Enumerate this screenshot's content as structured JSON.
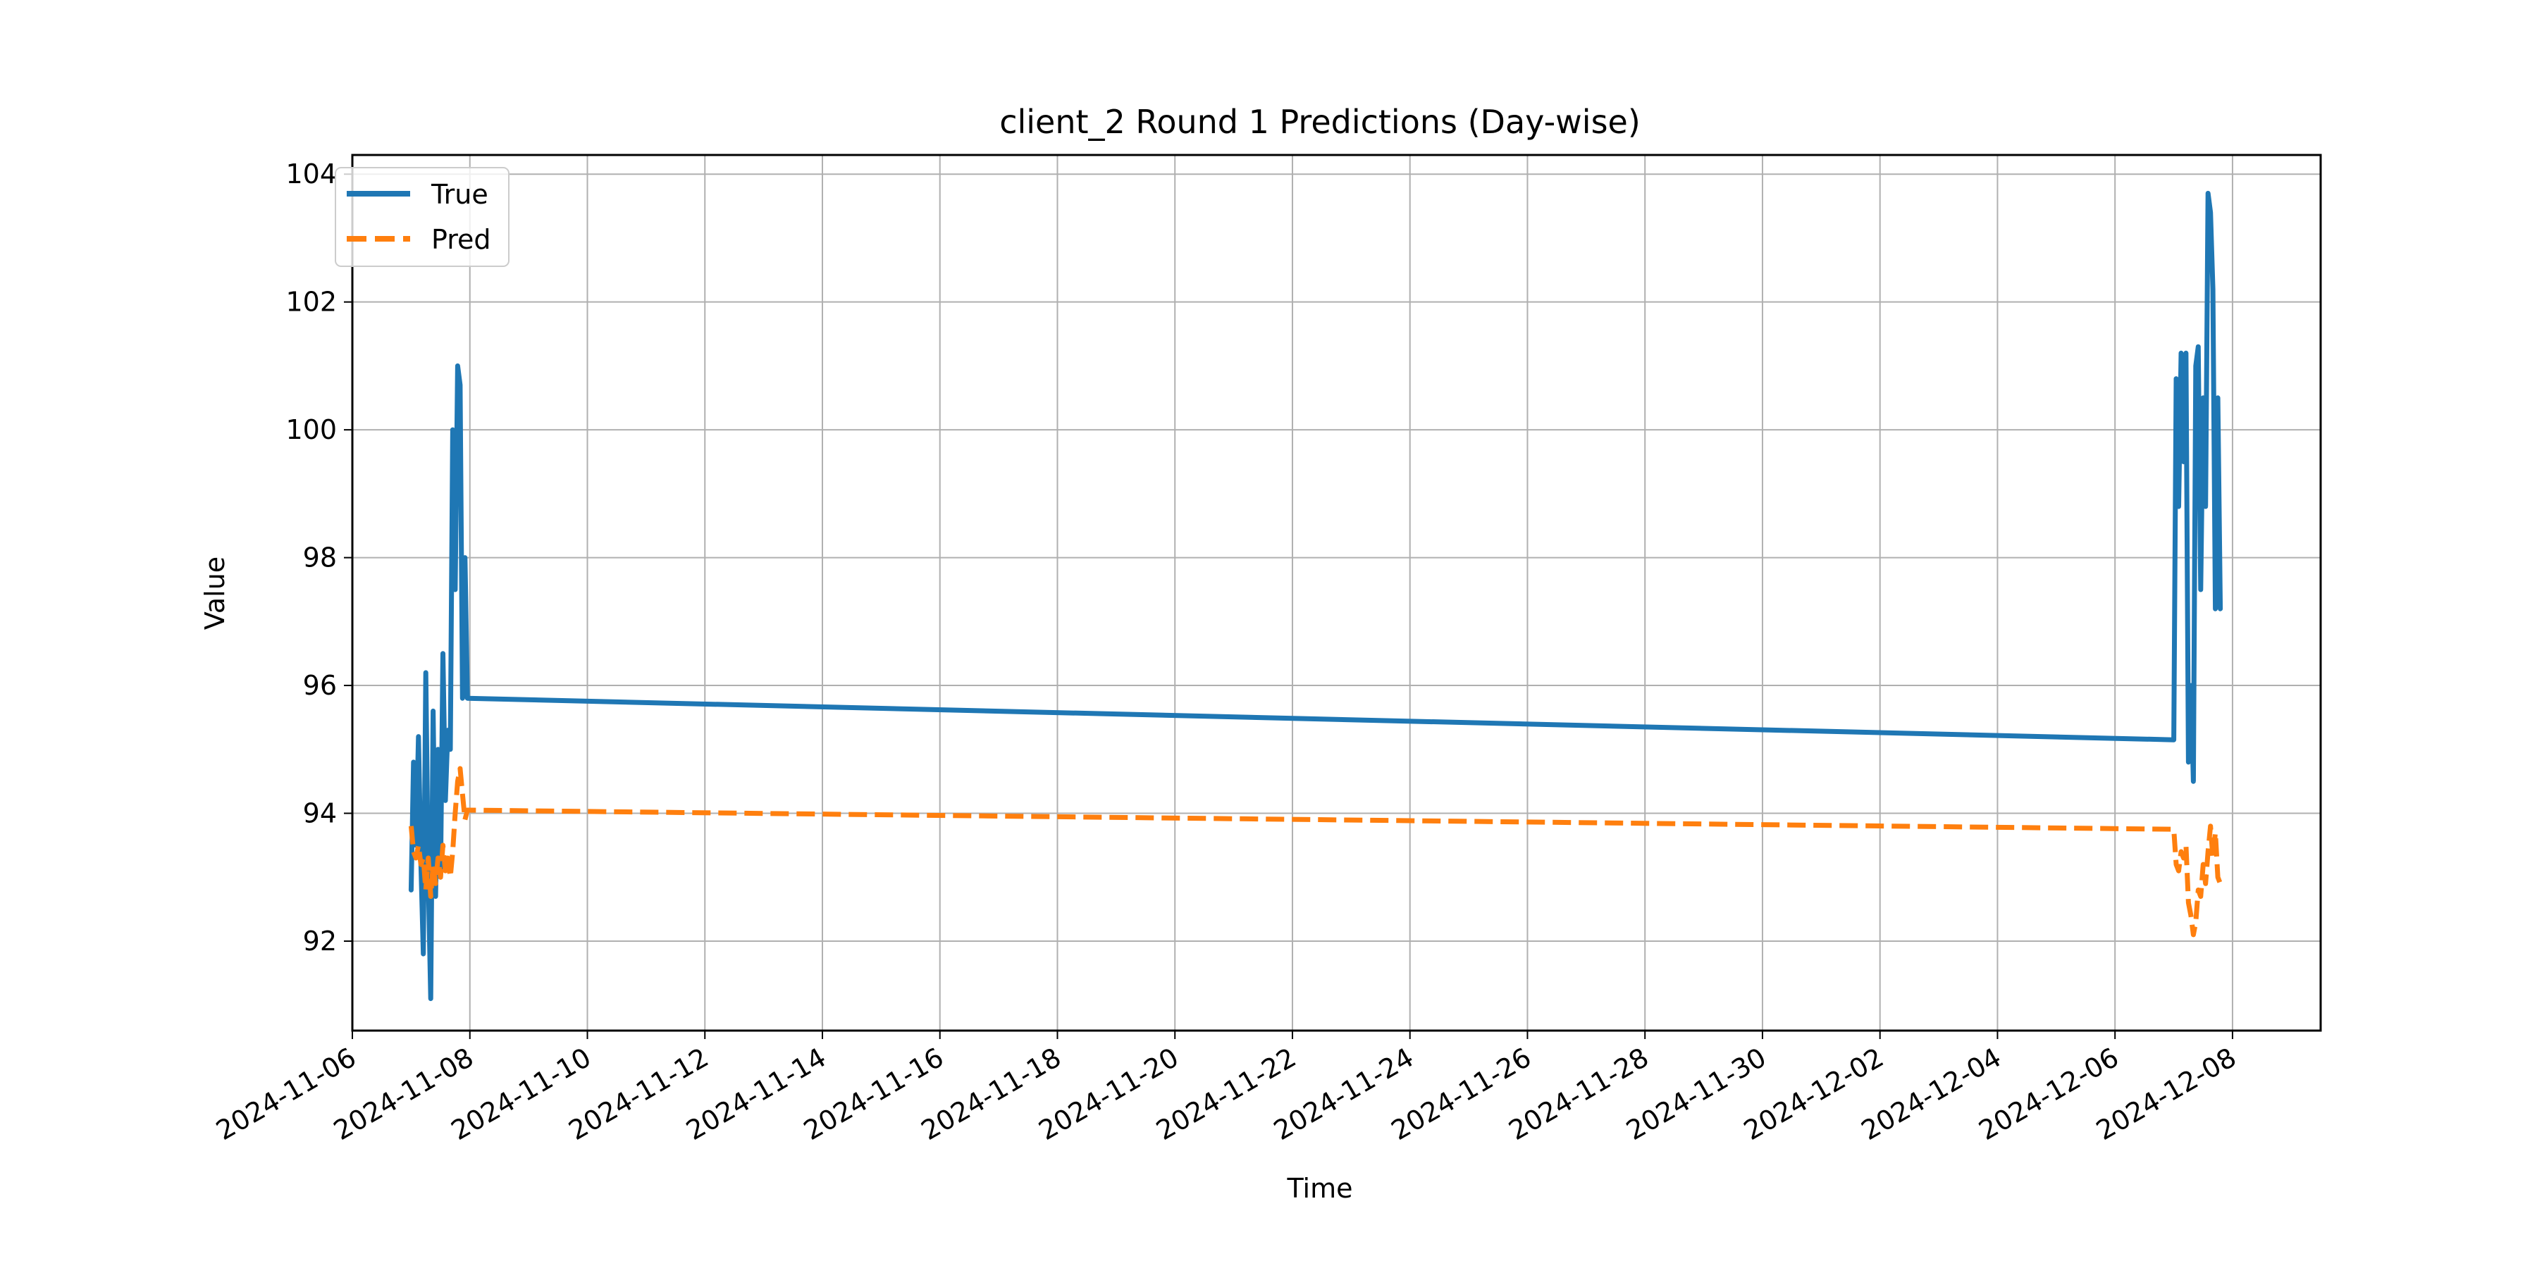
{
  "chart_data": {
    "type": "line",
    "title": "client_2 Round 1 Predictions (Day-wise)",
    "xlabel": "Time",
    "ylabel": "Value",
    "xlim": [
      "2024-11-06T00:00",
      "2024-12-09T12:00"
    ],
    "ylim": [
      90.6,
      104.3
    ],
    "x_ticks": [
      "2024-11-06",
      "2024-11-08",
      "2024-11-10",
      "2024-11-12",
      "2024-11-14",
      "2024-11-16",
      "2024-11-18",
      "2024-11-20",
      "2024-11-22",
      "2024-11-24",
      "2024-11-26",
      "2024-11-28",
      "2024-11-30",
      "2024-12-02",
      "2024-12-04",
      "2024-12-06",
      "2024-12-08"
    ],
    "y_ticks": [
      92,
      94,
      96,
      98,
      100,
      102,
      104
    ],
    "grid": true,
    "legend_position": "top-left",
    "series": [
      {
        "name": "True",
        "color": "#1f77b4",
        "style": "solid",
        "points": [
          [
            "2024-11-07T00:00",
            92.8
          ],
          [
            "2024-11-07T01:00",
            94.8
          ],
          [
            "2024-11-07T02:00",
            93.5
          ],
          [
            "2024-11-07T03:00",
            95.2
          ],
          [
            "2024-11-07T04:00",
            93.2
          ],
          [
            "2024-11-07T05:00",
            91.8
          ],
          [
            "2024-11-07T06:00",
            96.2
          ],
          [
            "2024-11-07T07:00",
            93.0
          ],
          [
            "2024-11-07T08:00",
            91.1
          ],
          [
            "2024-11-07T09:00",
            95.6
          ],
          [
            "2024-11-07T10:00",
            92.7
          ],
          [
            "2024-11-07T11:00",
            95.0
          ],
          [
            "2024-11-07T12:00",
            93.0
          ],
          [
            "2024-11-07T13:00",
            96.5
          ],
          [
            "2024-11-07T14:00",
            94.2
          ],
          [
            "2024-11-07T15:00",
            95.3
          ],
          [
            "2024-11-07T16:00",
            95.0
          ],
          [
            "2024-11-07T17:00",
            100.0
          ],
          [
            "2024-11-07T18:00",
            97.5
          ],
          [
            "2024-11-07T19:00",
            101.0
          ],
          [
            "2024-11-07T20:00",
            100.7
          ],
          [
            "2024-11-07T21:00",
            95.8
          ],
          [
            "2024-11-07T22:00",
            98.0
          ],
          [
            "2024-11-07T23:00",
            95.8
          ],
          [
            "2024-12-07T00:00",
            95.15
          ],
          [
            "2024-12-07T01:00",
            100.8
          ],
          [
            "2024-12-07T02:00",
            98.8
          ],
          [
            "2024-12-07T03:00",
            101.2
          ],
          [
            "2024-12-07T04:00",
            99.5
          ],
          [
            "2024-12-07T05:00",
            101.2
          ],
          [
            "2024-12-07T06:00",
            94.8
          ],
          [
            "2024-12-07T07:00",
            96.0
          ],
          [
            "2024-12-07T08:00",
            94.5
          ],
          [
            "2024-12-07T09:00",
            101.0
          ],
          [
            "2024-12-07T10:00",
            101.3
          ],
          [
            "2024-12-07T11:00",
            97.5
          ],
          [
            "2024-12-07T12:00",
            100.5
          ],
          [
            "2024-12-07T13:00",
            98.8
          ],
          [
            "2024-12-07T14:00",
            103.7
          ],
          [
            "2024-12-07T15:00",
            103.4
          ],
          [
            "2024-12-07T16:00",
            102.2
          ],
          [
            "2024-12-07T17:00",
            97.2
          ],
          [
            "2024-12-07T18:00",
            100.5
          ],
          [
            "2024-12-07T19:00",
            97.2
          ]
        ]
      },
      {
        "name": "Pred",
        "color": "#ff7f0e",
        "style": "dashed",
        "points": [
          [
            "2024-11-07T00:00",
            93.8
          ],
          [
            "2024-11-07T01:00",
            93.4
          ],
          [
            "2024-11-07T02:00",
            93.3
          ],
          [
            "2024-11-07T03:00",
            93.5
          ],
          [
            "2024-11-07T04:00",
            93.2
          ],
          [
            "2024-11-07T05:00",
            93.3
          ],
          [
            "2024-11-07T06:00",
            92.8
          ],
          [
            "2024-11-07T07:00",
            93.3
          ],
          [
            "2024-11-07T08:00",
            92.7
          ],
          [
            "2024-11-07T09:00",
            93.2
          ],
          [
            "2024-11-07T10:00",
            92.9
          ],
          [
            "2024-11-07T11:00",
            93.3
          ],
          [
            "2024-11-07T12:00",
            93.0
          ],
          [
            "2024-11-07T13:00",
            93.5
          ],
          [
            "2024-11-07T14:00",
            93.1
          ],
          [
            "2024-11-07T15:00",
            93.3
          ],
          [
            "2024-11-07T16:00",
            93.0
          ],
          [
            "2024-11-07T17:00",
            93.4
          ],
          [
            "2024-11-07T18:00",
            94.0
          ],
          [
            "2024-11-07T19:00",
            94.5
          ],
          [
            "2024-11-07T20:00",
            94.7
          ],
          [
            "2024-11-07T21:00",
            94.3
          ],
          [
            "2024-11-07T22:00",
            93.9
          ],
          [
            "2024-11-07T23:00",
            94.05
          ],
          [
            "2024-12-07T00:00",
            93.75
          ],
          [
            "2024-12-07T01:00",
            93.2
          ],
          [
            "2024-12-07T02:00",
            93.1
          ],
          [
            "2024-12-07T03:00",
            93.4
          ],
          [
            "2024-12-07T04:00",
            93.3
          ],
          [
            "2024-12-07T05:00",
            93.5
          ],
          [
            "2024-12-07T06:00",
            92.6
          ],
          [
            "2024-12-07T07:00",
            92.4
          ],
          [
            "2024-12-07T08:00",
            92.1
          ],
          [
            "2024-12-07T09:00",
            92.3
          ],
          [
            "2024-12-07T10:00",
            92.8
          ],
          [
            "2024-12-07T11:00",
            92.7
          ],
          [
            "2024-12-07T12:00",
            93.2
          ],
          [
            "2024-12-07T13:00",
            92.9
          ],
          [
            "2024-12-07T14:00",
            93.4
          ],
          [
            "2024-12-07T15:00",
            93.8
          ],
          [
            "2024-12-07T16:00",
            93.3
          ],
          [
            "2024-12-07T17:00",
            93.7
          ],
          [
            "2024-12-07T18:00",
            93.0
          ],
          [
            "2024-12-07T19:00",
            92.9
          ]
        ]
      }
    ]
  }
}
